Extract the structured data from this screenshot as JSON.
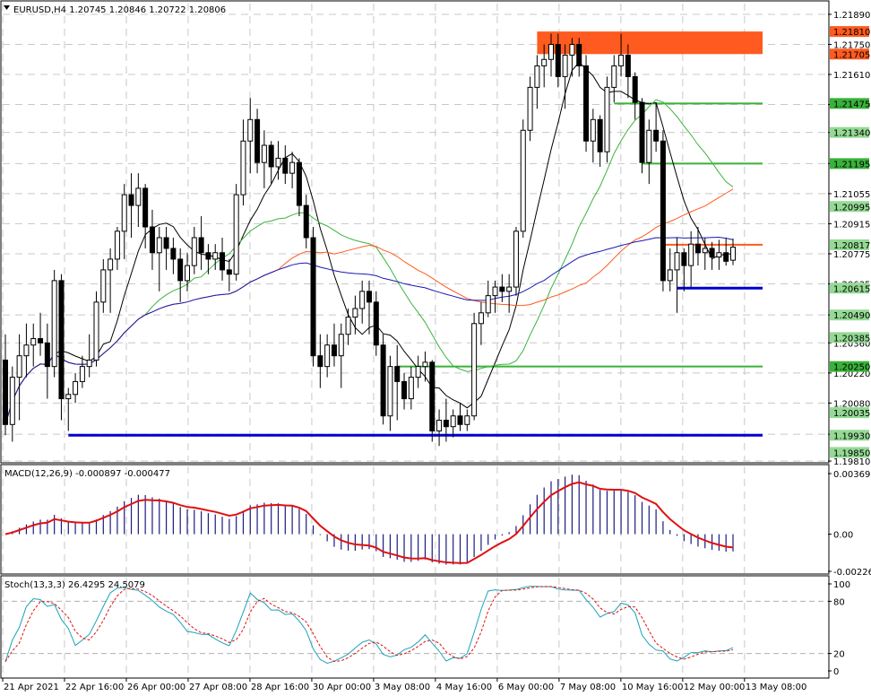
{
  "main": {
    "header": "EURUSD,H4  1.20745 1.20846 1.20722 1.20806",
    "price_axis": [
      "1.21890",
      "1.21750",
      "1.21610",
      "1.21470",
      "1.21340",
      "1.21195",
      "1.21055",
      "1.20915",
      "1.20775",
      "1.20635",
      "1.20490",
      "1.20360",
      "1.20220",
      "1.20080",
      "1.19935",
      "1.19810"
    ],
    "price_boxes": [
      {
        "value": "1.21810",
        "color": "#ff5a1f"
      },
      {
        "value": "1.21705",
        "color": "#ff5a1f"
      },
      {
        "value": "1.21475",
        "color": "#39b239"
      },
      {
        "value": "1.21340",
        "color": "#94d994"
      },
      {
        "value": "1.21195",
        "color": "#39b239"
      },
      {
        "value": "1.20995",
        "color": "#94d994"
      },
      {
        "value": "1.20817",
        "color": "#94d994"
      },
      {
        "value": "1.20615",
        "color": "#94d994"
      },
      {
        "value": "1.20490",
        "color": "#94d994"
      },
      {
        "value": "1.20385",
        "color": "#94d994"
      },
      {
        "value": "1.20250",
        "color": "#39b239"
      },
      {
        "value": "1.20035",
        "color": "#94d994"
      },
      {
        "value": "1.19930",
        "color": "#94d994"
      },
      {
        "value": "1.19850",
        "color": "#94d994"
      }
    ]
  },
  "macd": {
    "header": "MACD(12,26,9) -0.000897 -0.000477",
    "axis": [
      "0.003691",
      "0.00",
      "-0.002261"
    ]
  },
  "stoch": {
    "header": "Stoch(13,3,3) 26.4295 24.5079",
    "axis": [
      "100",
      "80",
      "20",
      "0"
    ]
  },
  "time_axis": [
    "21 Apr 2021",
    "22 Apr 16:00",
    "26 Apr 00:00",
    "27 Apr 08:00",
    "28 Apr 16:00",
    "30 Apr 00:00",
    "3 May 08:00",
    "4 May 16:00",
    "6 May 00:00",
    "7 May 08:00",
    "10 May 16:00",
    "12 May 00:00",
    "13 May 08:00"
  ],
  "colors": {
    "bull": "#ffffff",
    "bear": "#000000",
    "ma_fast": "#000000",
    "ma_mid": "#3cb33c",
    "ma_slow": "#ff5a1f",
    "ma_long": "#1919b3",
    "resistance_zone": "#ff5a1f",
    "support_line": "#0000d0",
    "level_line": "#39b239",
    "macd_hist": "#1a1a80",
    "macd_signal": "#e01010",
    "stoch_main": "#1aa3b8",
    "stoch_signal": "#e01010"
  },
  "chart_data": {
    "type": "candlestick",
    "symbol": "EURUSD",
    "timeframe": "H4",
    "ohlc_last": {
      "open": 1.20745,
      "high": 1.20846,
      "low": 1.20722,
      "close": 1.20806
    },
    "ylim": [
      1.1981,
      1.2194
    ],
    "candles": [
      [
        1.2028,
        1.204,
        1.1993,
        1.1998
      ],
      [
        1.1998,
        1.2025,
        1.199,
        1.202
      ],
      [
        1.202,
        1.204,
        1.2,
        1.203
      ],
      [
        1.203,
        1.2045,
        1.202,
        1.2035
      ],
      [
        1.2035,
        1.2045,
        1.2025,
        1.2038
      ],
      [
        1.2038,
        1.205,
        1.203,
        1.2036
      ],
      [
        1.2036,
        1.2045,
        1.201,
        1.2025
      ],
      [
        1.2025,
        1.207,
        1.202,
        1.2065
      ],
      [
        1.2065,
        1.2068,
        1.2,
        1.201
      ],
      [
        1.201,
        1.2015,
        1.1995,
        1.2012
      ],
      [
        1.2012,
        1.2022,
        1.2008,
        1.2018
      ],
      [
        1.2018,
        1.203,
        1.2015,
        1.2025
      ],
      [
        1.2025,
        1.204,
        1.202,
        1.2028
      ],
      [
        1.2028,
        1.206,
        1.2025,
        1.2055
      ],
      [
        1.2055,
        1.2075,
        1.205,
        1.207
      ],
      [
        1.207,
        1.208,
        1.205,
        1.2075
      ],
      [
        1.2075,
        1.209,
        1.207,
        1.2088
      ],
      [
        1.2088,
        1.211,
        1.2075,
        1.2105
      ],
      [
        1.2105,
        1.2115,
        1.2085,
        1.21
      ],
      [
        1.21,
        1.2115,
        1.209,
        1.2108
      ],
      [
        1.2108,
        1.211,
        1.208,
        1.209
      ],
      [
        1.209,
        1.2098,
        1.207,
        1.2078
      ],
      [
        1.2078,
        1.209,
        1.206,
        1.2085
      ],
      [
        1.2085,
        1.209,
        1.207,
        1.208
      ],
      [
        1.208,
        1.2085,
        1.2068,
        1.2075
      ],
      [
        1.2075,
        1.208,
        1.2055,
        1.2065
      ],
      [
        1.2065,
        1.2078,
        1.206,
        1.2072
      ],
      [
        1.2072,
        1.209,
        1.2068,
        1.2085
      ],
      [
        1.2085,
        1.2095,
        1.207,
        1.2078
      ],
      [
        1.2078,
        1.2082,
        1.2068,
        1.2075
      ],
      [
        1.2075,
        1.2082,
        1.207,
        1.2078
      ],
      [
        1.2078,
        1.2085,
        1.2065,
        1.207
      ],
      [
        1.207,
        1.2075,
        1.206,
        1.2068
      ],
      [
        1.2068,
        1.211,
        1.2065,
        1.2105
      ],
      [
        1.2105,
        1.214,
        1.21,
        1.213
      ],
      [
        1.213,
        1.215,
        1.2115,
        1.214
      ],
      [
        1.214,
        1.2145,
        1.2115,
        1.212
      ],
      [
        1.212,
        1.2135,
        1.2108,
        1.2128
      ],
      [
        1.2128,
        1.213,
        1.211,
        1.2118
      ],
      [
        1.2118,
        1.213,
        1.2112,
        1.2122
      ],
      [
        1.2122,
        1.2128,
        1.211,
        1.2115
      ],
      [
        1.2115,
        1.2125,
        1.2108,
        1.212
      ],
      [
        1.212,
        1.2122,
        1.2095,
        1.21
      ],
      [
        1.21,
        1.2105,
        1.208,
        1.2085
      ],
      [
        1.2085,
        1.209,
        1.2025,
        1.203
      ],
      [
        1.203,
        1.204,
        1.2015,
        1.2025
      ],
      [
        1.2025,
        1.204,
        1.202,
        1.2035
      ],
      [
        1.2035,
        1.2045,
        1.2025,
        1.203
      ],
      [
        1.203,
        1.2045,
        1.2015,
        1.204
      ],
      [
        1.204,
        1.2052,
        1.2035,
        1.2048
      ],
      [
        1.2048,
        1.2058,
        1.204,
        1.2052
      ],
      [
        1.2052,
        1.2065,
        1.2045,
        1.206
      ],
      [
        1.206,
        1.2065,
        1.204,
        1.2055
      ],
      [
        1.2055,
        1.206,
        1.203,
        1.2035
      ],
      [
        1.2035,
        1.204,
        1.1998,
        1.2002
      ],
      [
        1.2002,
        1.203,
        1.1995,
        1.2025
      ],
      [
        1.2025,
        1.2035,
        1.2,
        1.2018
      ],
      [
        1.2018,
        1.2022,
        1.2005,
        1.201
      ],
      [
        1.201,
        1.2025,
        1.2005,
        1.202
      ],
      [
        1.202,
        1.203,
        1.2015,
        1.2025
      ],
      [
        1.2025,
        1.2032,
        1.2018,
        1.2027
      ],
      [
        1.2027,
        1.2028,
        1.199,
        1.1995
      ],
      [
        1.1995,
        1.2005,
        1.1988,
        1.2
      ],
      [
        1.2,
        1.201,
        1.199,
        1.1997
      ],
      [
        1.1997,
        1.2005,
        1.1992,
        1.2002
      ],
      [
        1.2002,
        1.2008,
        1.1995,
        1.1998
      ],
      [
        1.1998,
        1.2005,
        1.1995,
        1.2002
      ],
      [
        1.2002,
        1.205,
        1.2,
        1.2045
      ],
      [
        1.2045,
        1.2055,
        1.2035,
        1.205
      ],
      [
        1.205,
        1.2065,
        1.2048,
        1.2058
      ],
      [
        1.2058,
        1.2065,
        1.205,
        1.2062
      ],
      [
        1.2062,
        1.2068,
        1.2055,
        1.206
      ],
      [
        1.206,
        1.2068,
        1.205,
        1.2062
      ],
      [
        1.2062,
        1.209,
        1.2058,
        1.2088
      ],
      [
        1.2088,
        1.214,
        1.2085,
        1.2135
      ],
      [
        1.2135,
        1.216,
        1.213,
        1.2155
      ],
      [
        1.2155,
        1.217,
        1.2145,
        1.2165
      ],
      [
        1.2165,
        1.2175,
        1.2155,
        1.2168
      ],
      [
        1.2168,
        1.218,
        1.216,
        1.2175
      ],
      [
        1.2175,
        1.218,
        1.2155,
        1.216
      ],
      [
        1.216,
        1.2175,
        1.2145,
        1.217
      ],
      [
        1.217,
        1.2178,
        1.216,
        1.2175
      ],
      [
        1.2175,
        1.2178,
        1.216,
        1.2165
      ],
      [
        1.2165,
        1.217,
        1.2125,
        1.213
      ],
      [
        1.213,
        1.2145,
        1.212,
        1.214
      ],
      [
        1.214,
        1.2142,
        1.2118,
        1.2125
      ],
      [
        1.2125,
        1.216,
        1.212,
        1.2155
      ],
      [
        1.2155,
        1.217,
        1.2148,
        1.2165
      ],
      [
        1.2165,
        1.218,
        1.216,
        1.217
      ],
      [
        1.217,
        1.2175,
        1.215,
        1.216
      ],
      [
        1.216,
        1.2162,
        1.214,
        1.2148
      ],
      [
        1.2148,
        1.215,
        1.2115,
        1.212
      ],
      [
        1.212,
        1.214,
        1.211,
        1.2135
      ],
      [
        1.2135,
        1.2148,
        1.2125,
        1.213
      ],
      [
        1.213,
        1.2135,
        1.206,
        1.2065
      ],
      [
        1.2065,
        1.208,
        1.206,
        1.207
      ],
      [
        1.207,
        1.2085,
        1.205,
        1.2078
      ],
      [
        1.2078,
        1.208,
        1.206,
        1.2072
      ],
      [
        1.2072,
        1.2088,
        1.2062,
        1.2082
      ],
      [
        1.2082,
        1.209,
        1.2072,
        1.2078
      ],
      [
        1.2078,
        1.2085,
        1.207,
        1.208
      ],
      [
        1.208,
        1.2083,
        1.207,
        1.2076
      ],
      [
        1.2076,
        1.2084,
        1.207,
        1.2078
      ],
      [
        1.2078,
        1.2085,
        1.2072,
        1.2074
      ],
      [
        1.20745,
        1.20846,
        1.20722,
        1.20806
      ]
    ],
    "levels": [
      {
        "price": 1.21475,
        "kind": "level"
      },
      {
        "price": 1.21195,
        "kind": "level"
      },
      {
        "price": 1.20817,
        "kind": "level"
      },
      {
        "price": 1.20615,
        "kind": "support"
      },
      {
        "price": 1.2025,
        "kind": "level"
      },
      {
        "price": 1.1993,
        "kind": "support"
      }
    ],
    "resistance_zone": [
      1.21705,
      1.2181
    ],
    "macd_ylim": [
      -0.002261,
      0.003691
    ],
    "stoch_ylim": [
      0,
      100
    ],
    "stoch_levels": [
      20,
      80
    ]
  }
}
